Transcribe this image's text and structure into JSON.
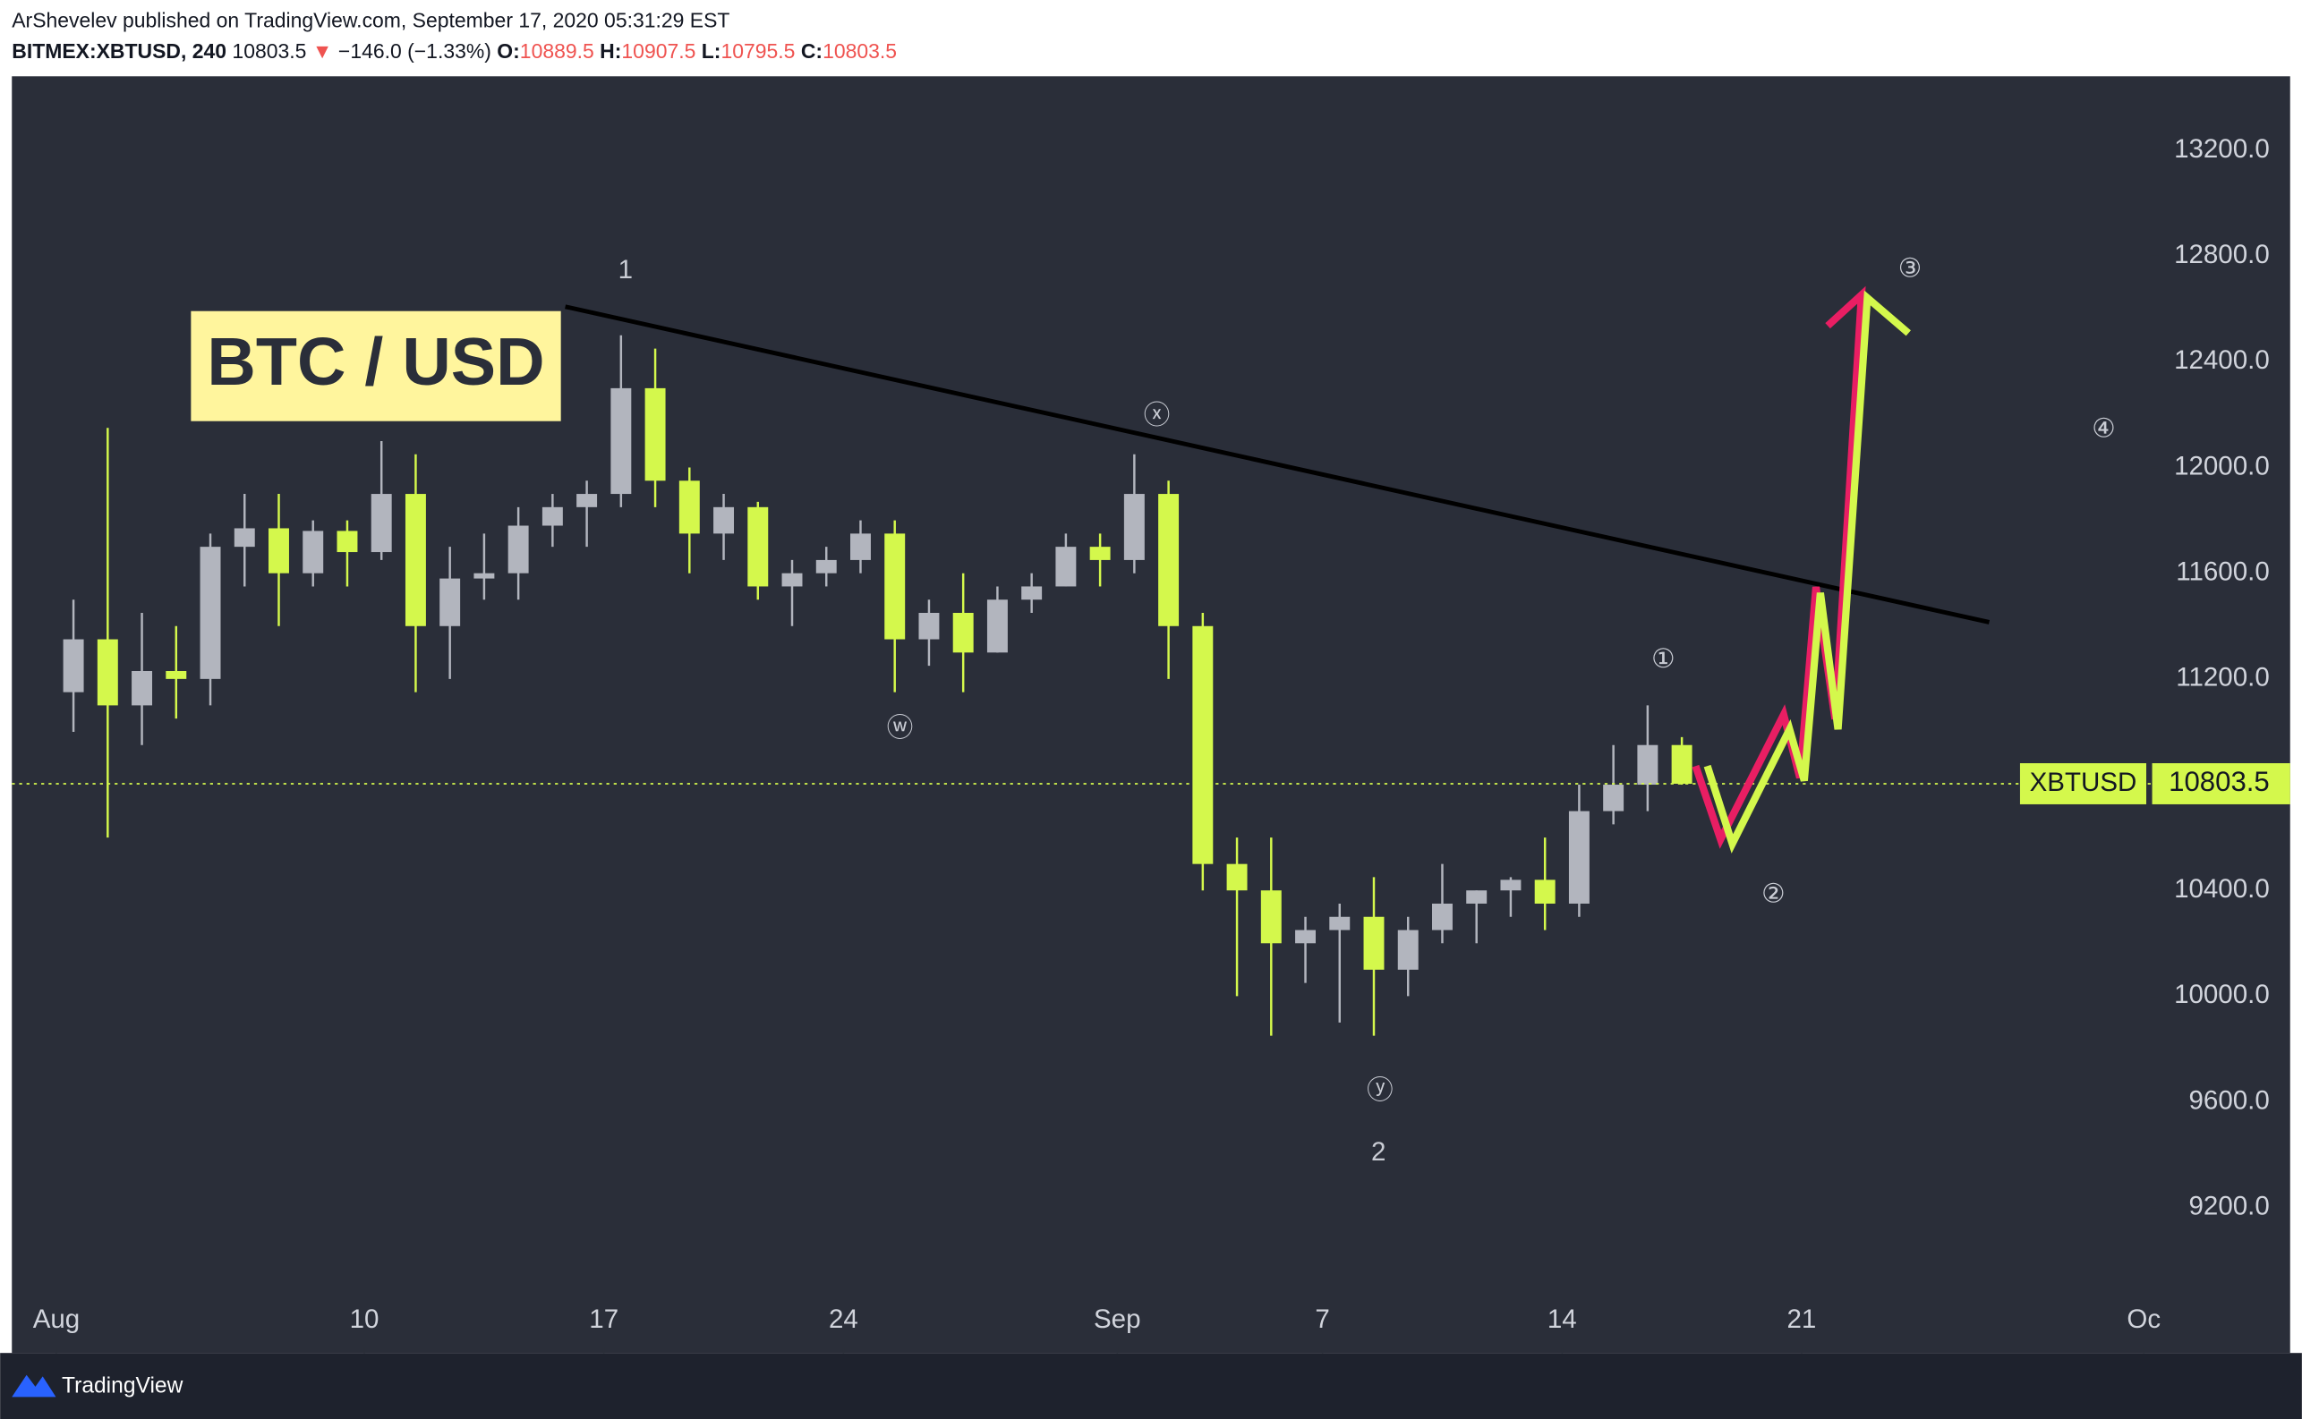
{
  "header": {
    "publisher": "ArShevelev published on TradingView.com, September 17, 2020 05:31:29 EST",
    "symbol": "BITMEX:XBTUSD, 240",
    "arrow": "▼",
    "change": "−146.0 (−1.33%)",
    "ohlc": [
      {
        "key": "O:",
        "value": "10889.5"
      },
      {
        "key": "H:",
        "value": "10907.5"
      },
      {
        "key": "L:",
        "value": "10795.5"
      },
      {
        "key": "C:",
        "value": "10803.5"
      }
    ]
  },
  "footer": {
    "brand": "TradingView"
  },
  "chart_data": {
    "type": "candlestick",
    "title": "BTC / USD",
    "x": [
      0.5,
      1.5,
      2.5,
      3.5,
      4.5,
      5.5,
      6.5,
      7.5,
      8.5,
      9.5,
      10.5,
      11.5,
      12.5,
      13.5,
      14.5,
      15.5,
      16.5,
      17.5,
      18.5,
      19.5,
      20.5,
      21.5,
      22.5,
      23.5,
      24.5,
      25.5,
      26.5,
      27.5,
      28.5,
      29.5,
      30.5,
      31.5,
      32.5,
      33.5,
      34.5,
      35.5,
      36.5,
      37.5,
      38.5,
      39.5,
      40.5,
      41.5,
      42.5,
      43.5,
      44.5,
      45.5,
      46.5,
      47.5
    ],
    "open": [
      11150,
      11350,
      11100,
      11230,
      11200,
      11700,
      11770,
      11600,
      11760,
      11680,
      11900,
      11400,
      11580,
      11600,
      11780,
      11850,
      11900,
      12300,
      11950,
      11750,
      11850,
      11550,
      11600,
      11650,
      11750,
      11350,
      11450,
      11300,
      11500,
      11550,
      11700,
      11650,
      11900,
      11400,
      10500,
      10400,
      10200,
      10250,
      10300,
      10100,
      10250,
      10350,
      10400,
      10440,
      10350,
      10700,
      10800,
      10950
    ],
    "high": [
      11500,
      12150,
      11450,
      11400,
      11750,
      11900,
      11900,
      11800,
      11800,
      12100,
      12050,
      11700,
      11750,
      11850,
      11900,
      11950,
      12500,
      12450,
      12000,
      11900,
      11870,
      11650,
      11700,
      11800,
      11800,
      11500,
      11600,
      11550,
      11600,
      11750,
      11750,
      12050,
      11950,
      11450,
      10600,
      10600,
      10300,
      10350,
      10450,
      10300,
      10500,
      10400,
      10450,
      10600,
      10800,
      10950,
      11100,
      10980
    ],
    "low": [
      11000,
      10600,
      10950,
      11050,
      11100,
      11550,
      11400,
      11550,
      11550,
      11650,
      11150,
      11200,
      11500,
      11500,
      11700,
      11700,
      11850,
      11850,
      11600,
      11650,
      11500,
      11400,
      11550,
      11600,
      11150,
      11250,
      11150,
      11300,
      11450,
      11550,
      11550,
      11600,
      11200,
      10400,
      10000,
      9850,
      10050,
      9900,
      9850,
      10000,
      10200,
      10200,
      10300,
      10250,
      10300,
      10650,
      10700,
      10800
    ],
    "close": [
      11350,
      11100,
      11230,
      11200,
      11700,
      11770,
      11600,
      11760,
      11680,
      11900,
      11400,
      11580,
      11600,
      11780,
      11850,
      11900,
      12300,
      11950,
      11750,
      11850,
      11550,
      11600,
      11650,
      11750,
      11350,
      11450,
      11300,
      11500,
      11550,
      11700,
      11650,
      11900,
      11400,
      10500,
      10400,
      10200,
      10250,
      10300,
      10100,
      10250,
      10350,
      10400,
      10440,
      10350,
      10700,
      10800,
      10950,
      10803.5
    ],
    "up_color": "#b2b5be",
    "down_color": "#d4f84c",
    "xlim": [
      -1.3,
      61.2
    ],
    "xticks": [
      {
        "value": 0,
        "label": "Aug"
      },
      {
        "value": 9,
        "label": "10"
      },
      {
        "value": 16,
        "label": "17"
      },
      {
        "value": 23,
        "label": "24"
      },
      {
        "value": 31,
        "label": "Sep"
      },
      {
        "value": 37,
        "label": "7"
      },
      {
        "value": 44,
        "label": "14"
      },
      {
        "value": 51,
        "label": "21"
      },
      {
        "value": 61,
        "label": "Oc"
      }
    ],
    "ylim": [
      8650,
      13480
    ],
    "yticks": [
      {
        "value": 9200,
        "label": "9200.0"
      },
      {
        "value": 9600,
        "label": "9600.0"
      },
      {
        "value": 10000,
        "label": "10000.0"
      },
      {
        "value": 10400,
        "label": "10400.0"
      },
      {
        "value": 10800,
        "label": "10800.0"
      },
      {
        "value": 11200,
        "label": "11200.0"
      },
      {
        "value": 11600,
        "label": "11600.0"
      },
      {
        "value": 12000,
        "label": "12000.0"
      },
      {
        "value": 12400,
        "label": "12400.0"
      },
      {
        "value": 12800,
        "label": "12800.0"
      },
      {
        "value": 13200,
        "label": "13200.0"
      }
    ],
    "last_price": 10803.5,
    "symbol_label": "XBTUSD",
    "annotations": [
      "1",
      "ⓦ",
      "ⓧ",
      "ⓨ",
      "2",
      "①",
      "②",
      "③",
      "④"
    ]
  }
}
